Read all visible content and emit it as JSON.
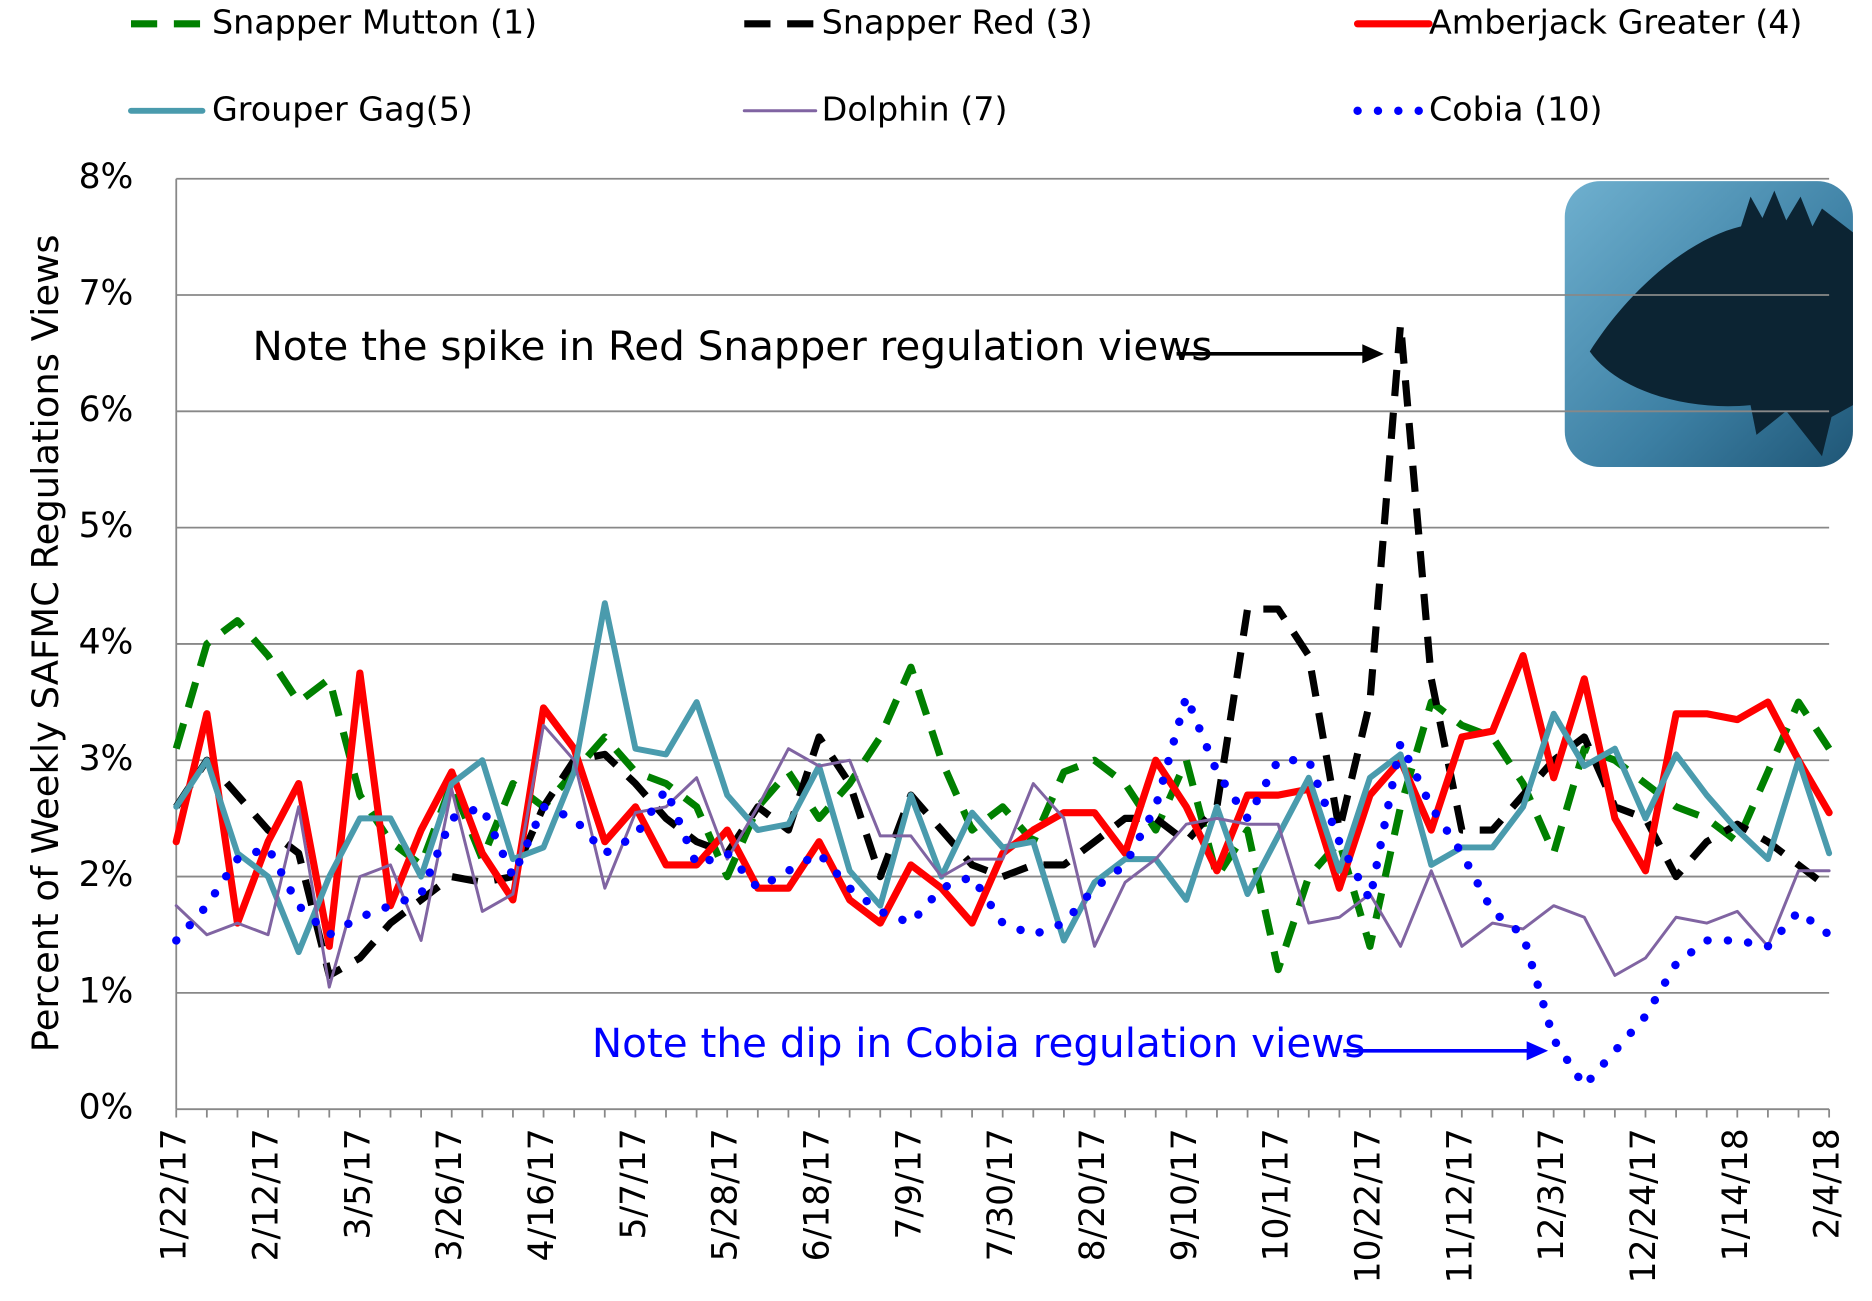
{
  "chart_data": {
    "type": "line",
    "y_label": "Percent of Weekly SAFMC Regulations Views",
    "categories": [
      "1/22/17",
      null,
      null,
      "2/12/17",
      null,
      null,
      "3/5/17",
      null,
      null,
      "3/26/17",
      null,
      null,
      "4/16/17",
      null,
      null,
      "5/7/17",
      null,
      null,
      "5/28/17",
      null,
      null,
      "6/18/17",
      null,
      null,
      "7/9/17",
      null,
      null,
      "7/30/17",
      null,
      null,
      "8/20/17",
      null,
      null,
      "9/10/17",
      null,
      null,
      "10/1/17",
      null,
      null,
      "10/22/17",
      null,
      null,
      "11/12/17",
      null,
      null,
      "12/3/17",
      null,
      null,
      "12/24/17",
      null,
      null,
      "1/14/18",
      null,
      null,
      "2/4/18"
    ],
    "ylim": [
      0,
      8
    ],
    "yticks": [
      {
        "value": 0,
        "label": "0%"
      },
      {
        "value": 1,
        "label": "1%"
      },
      {
        "value": 2,
        "label": "2%"
      },
      {
        "value": 3,
        "label": "3%"
      },
      {
        "value": 4,
        "label": "4%"
      },
      {
        "value": 5,
        "label": "5%"
      },
      {
        "value": 6,
        "label": "6%"
      },
      {
        "value": 7,
        "label": "7%"
      },
      {
        "value": 8,
        "label": "8%"
      }
    ],
    "grid": true,
    "series": [
      {
        "name": "Snapper Mutton (1)",
        "color": "#008000",
        "style": "dashed",
        "values": [
          3.1,
          4.0,
          4.2,
          3.9,
          3.5,
          3.7,
          2.7,
          2.3,
          2.1,
          2.8,
          2.15,
          2.8,
          2.6,
          2.9,
          3.2,
          2.9,
          2.8,
          2.6,
          2.0,
          2.6,
          2.9,
          2.5,
          2.8,
          3.2,
          3.8,
          3.0,
          2.4,
          2.6,
          2.3,
          2.9,
          3.0,
          2.8,
          2.4,
          3.0,
          2.0,
          2.4,
          1.2,
          2.0,
          2.3,
          1.4,
          2.6,
          3.5,
          3.3,
          3.2,
          2.8,
          2.2,
          3.1,
          3.0,
          2.8,
          2.6,
          2.5,
          2.3,
          2.9,
          3.5,
          3.1
        ]
      },
      {
        "name": "Snapper Red (3)",
        "color": "#000000",
        "style": "dashed",
        "values": [
          2.6,
          3.0,
          2.7,
          2.4,
          2.2,
          1.15,
          1.3,
          1.6,
          1.8,
          2.0,
          1.95,
          2.0,
          2.6,
          3.0,
          3.05,
          2.8,
          2.5,
          2.3,
          2.2,
          2.6,
          2.4,
          3.2,
          2.8,
          2.0,
          2.7,
          2.4,
          2.1,
          2.0,
          2.1,
          2.1,
          2.3,
          2.5,
          2.5,
          2.3,
          2.6,
          4.3,
          4.3,
          3.9,
          2.4,
          3.5,
          6.75,
          3.7,
          2.4,
          2.4,
          2.7,
          3.0,
          3.2,
          2.6,
          2.5,
          2.0,
          2.3,
          2.45,
          2.3,
          2.1,
          1.9
        ]
      },
      {
        "name": "Amberjack Greater (4)",
        "color": "#ff0000",
        "style": "thick",
        "values": [
          2.3,
          3.4,
          1.6,
          2.3,
          2.8,
          1.4,
          3.75,
          1.75,
          2.4,
          2.9,
          2.2,
          1.8,
          3.45,
          3.1,
          2.3,
          2.6,
          2.1,
          2.1,
          2.4,
          1.9,
          1.9,
          2.3,
          1.8,
          1.6,
          2.1,
          1.9,
          1.6,
          2.2,
          2.4,
          2.55,
          2.55,
          2.2,
          3.0,
          2.6,
          2.05,
          2.7,
          2.7,
          2.75,
          1.9,
          2.7,
          3.0,
          2.4,
          3.2,
          3.25,
          3.9,
          2.85,
          3.7,
          2.5,
          2.05,
          3.4,
          3.4,
          3.35,
          3.5,
          3.0,
          2.55
        ]
      },
      {
        "name": "Grouper Gag(5)",
        "color": "#4a9bad",
        "style": "solid",
        "values": [
          2.6,
          3.0,
          2.2,
          2.0,
          1.35,
          2.0,
          2.5,
          2.5,
          2.0,
          2.8,
          3.0,
          2.15,
          2.25,
          2.9,
          4.35,
          3.1,
          3.05,
          3.5,
          2.7,
          2.4,
          2.45,
          2.95,
          2.05,
          1.75,
          2.7,
          2.0,
          2.55,
          2.25,
          2.3,
          1.45,
          1.95,
          2.15,
          2.15,
          1.8,
          2.6,
          1.85,
          2.35,
          2.85,
          2.05,
          2.85,
          3.05,
          2.1,
          2.25,
          2.25,
          2.6,
          3.4,
          2.95,
          3.1,
          2.5,
          3.05,
          2.7,
          2.4,
          2.15,
          3.0,
          2.2
        ]
      },
      {
        "name": "Dolphin (7)",
        "color": "#8064a2",
        "style": "thin",
        "values": [
          1.75,
          1.5,
          1.6,
          1.5,
          2.6,
          1.05,
          2.0,
          2.1,
          1.45,
          2.75,
          1.7,
          1.85,
          3.3,
          3.0,
          1.9,
          2.55,
          2.6,
          2.85,
          2.15,
          2.6,
          3.1,
          2.95,
          3.0,
          2.35,
          2.35,
          2.0,
          2.15,
          2.15,
          2.8,
          2.5,
          1.4,
          1.95,
          2.15,
          2.45,
          2.5,
          2.45,
          2.45,
          1.6,
          1.65,
          1.85,
          1.4,
          2.05,
          1.4,
          1.6,
          1.55,
          1.75,
          1.65,
          1.15,
          1.3,
          1.65,
          1.6,
          1.7,
          1.4,
          2.05,
          2.05
        ]
      },
      {
        "name": "Cobia (10)",
        "color": "#0000ff",
        "style": "dotted",
        "values": [
          1.45,
          1.75,
          2.15,
          2.25,
          1.75,
          1.5,
          1.65,
          1.75,
          1.85,
          2.5,
          2.6,
          2.0,
          2.6,
          2.5,
          2.2,
          2.35,
          2.75,
          2.1,
          2.2,
          1.9,
          2.05,
          2.2,
          1.9,
          1.7,
          1.6,
          1.9,
          2.0,
          1.6,
          1.5,
          1.6,
          1.9,
          2.1,
          2.6,
          3.55,
          2.9,
          2.5,
          3.0,
          3.0,
          2.3,
          1.8,
          3.15,
          2.6,
          2.2,
          1.7,
          1.5,
          0.6,
          0.2,
          0.5,
          0.8,
          1.25,
          1.45,
          1.45,
          1.4,
          1.7,
          1.5
        ]
      }
    ],
    "annotations": [
      "Note the spike in Red Snapper regulation views",
      "Note the dip in Cobia regulation views"
    ]
  }
}
